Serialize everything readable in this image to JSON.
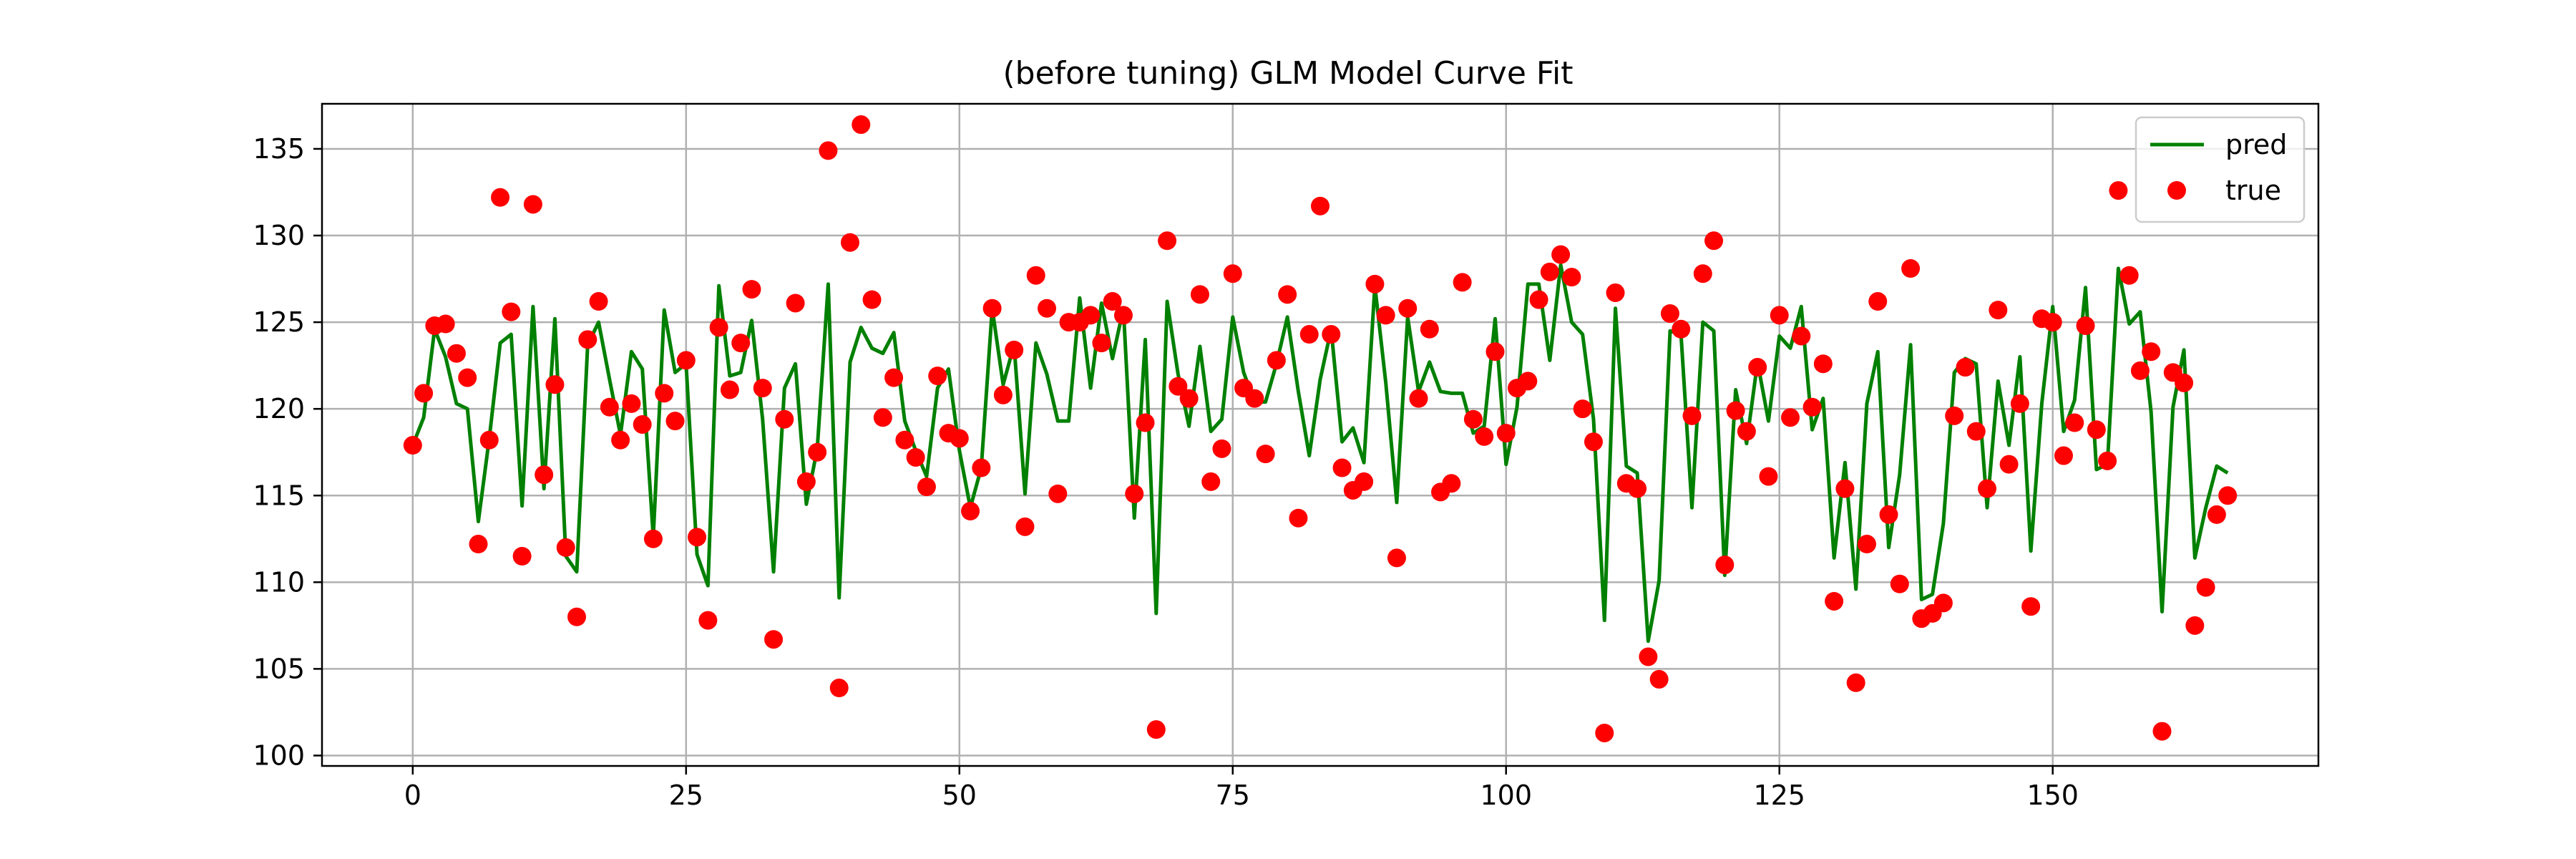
{
  "chart_data": {
    "type": "scatter",
    "title": "(before tuning) GLM Model Curve Fit",
    "xlabel": "",
    "ylabel": "",
    "xlim": [
      -8.3,
      174.3
    ],
    "ylim": [
      99.4,
      137.6
    ],
    "x_ticks": [
      0,
      25,
      50,
      75,
      100,
      125,
      150
    ],
    "x_tick_labels": [
      "0",
      "25",
      "50",
      "75",
      "100",
      "125",
      "150"
    ],
    "y_ticks": [
      100,
      105,
      110,
      115,
      120,
      125,
      130,
      135
    ],
    "y_tick_labels": [
      "100",
      "105",
      "110",
      "115",
      "120",
      "125",
      "130",
      "135"
    ],
    "grid": true,
    "legend_position": "top-right",
    "series": [
      {
        "name": "pred",
        "kind": "line",
        "color": "#008000",
        "values": [
          117.9,
          119.5,
          124.6,
          123.0,
          120.3,
          120.0,
          113.5,
          118.3,
          123.8,
          124.3,
          114.4,
          125.9,
          115.4,
          125.2,
          111.5,
          110.6,
          123.7,
          125.0,
          121.7,
          118.5,
          123.3,
          122.3,
          112.6,
          125.7,
          122.1,
          122.6,
          111.6,
          109.8,
          127.1,
          121.9,
          122.1,
          125.1,
          119.4,
          110.6,
          121.2,
          122.6,
          114.5,
          117.7,
          127.2,
          109.1,
          122.7,
          124.7,
          123.5,
          123.2,
          124.4,
          119.3,
          117.6,
          116.1,
          121.2,
          122.3,
          117.6,
          114.3,
          116.6,
          125.8,
          121.4,
          123.7,
          115.1,
          123.8,
          122.0,
          119.3,
          119.3,
          126.4,
          121.2,
          126.1,
          122.9,
          125.8,
          113.7,
          124.0,
          108.2,
          126.2,
          122.0,
          119.0,
          123.6,
          118.7,
          119.4,
          125.3,
          122.1,
          120.4,
          120.4,
          122.6,
          125.3,
          121.0,
          117.3,
          121.7,
          124.6,
          118.1,
          118.9,
          116.9,
          127.1,
          121.5,
          114.6,
          125.3,
          121.0,
          122.7,
          121.0,
          120.9,
          120.9,
          118.6,
          119.0,
          125.2,
          116.8,
          120.1,
          127.2,
          127.2,
          122.8,
          128.3,
          125.0,
          124.3,
          119.4,
          107.8,
          125.8,
          116.7,
          116.3,
          106.6,
          110.1,
          124.5,
          124.3,
          114.3,
          125.0,
          124.5,
          110.4,
          121.1,
          118.0,
          122.7,
          119.3,
          124.2,
          123.5,
          125.9,
          118.8,
          120.6,
          111.4,
          116.9,
          109.6,
          120.3,
          123.3,
          112.0,
          116.2,
          123.7,
          109.0,
          109.3,
          113.4,
          122.1,
          122.9,
          122.6,
          114.3,
          121.6,
          117.9,
          123.0,
          111.8,
          120.3,
          125.9,
          118.7,
          120.5,
          127.0,
          116.5,
          116.8,
          128.1,
          124.9,
          125.6,
          119.8,
          108.3,
          120.1,
          123.4,
          111.4,
          114.3,
          116.7,
          116.3
        ]
      },
      {
        "name": "true",
        "kind": "scatter",
        "color": "#ff0000",
        "values": [
          117.9,
          120.9,
          124.8,
          124.9,
          123.2,
          121.8,
          112.2,
          118.2,
          132.2,
          125.6,
          111.5,
          131.8,
          116.2,
          121.4,
          112.0,
          108.0,
          124.0,
          126.2,
          120.1,
          118.2,
          120.3,
          119.1,
          112.5,
          120.9,
          119.3,
          122.8,
          112.6,
          107.8,
          124.7,
          121.1,
          123.8,
          126.9,
          121.2,
          106.7,
          119.4,
          126.1,
          115.8,
          117.5,
          134.9,
          103.9,
          129.6,
          136.4,
          126.3,
          119.5,
          121.8,
          118.2,
          117.2,
          115.5,
          121.9,
          118.6,
          118.3,
          114.1,
          116.6,
          125.8,
          120.8,
          123.4,
          113.2,
          127.7,
          125.8,
          115.1,
          125.0,
          125.0,
          125.4,
          123.8,
          126.2,
          125.4,
          115.1,
          119.2,
          101.5,
          129.7,
          121.3,
          120.6,
          126.6,
          115.8,
          117.7,
          127.8,
          121.2,
          120.6,
          117.4,
          122.8,
          126.6,
          113.7,
          124.3,
          131.7,
          124.3,
          116.6,
          115.3,
          115.8,
          127.2,
          125.4,
          111.4,
          125.8,
          120.6,
          124.6,
          115.2,
          115.7,
          127.3,
          119.4,
          118.4,
          123.3,
          118.6,
          121.2,
          121.6,
          126.3,
          127.9,
          128.9,
          127.6,
          120.0,
          118.1,
          101.3,
          126.7,
          115.7,
          115.4,
          105.7,
          104.4,
          125.5,
          124.6,
          119.6,
          127.8,
          129.7,
          111.0,
          119.9,
          118.7,
          122.4,
          116.1,
          125.4,
          119.5,
          124.2,
          120.1,
          122.6,
          108.9,
          115.4,
          104.2,
          112.2,
          126.2,
          113.9,
          109.9,
          128.1,
          107.9,
          108.2,
          108.8,
          119.6,
          122.4,
          118.7,
          115.4,
          125.7,
          116.8,
          120.3,
          108.6,
          125.2,
          125.0,
          117.3,
          119.2,
          124.8,
          118.8,
          117.0,
          132.6,
          127.7,
          122.2,
          123.3,
          101.4,
          122.1,
          121.5,
          107.5,
          109.7,
          113.9,
          115.0
        ]
      }
    ]
  }
}
